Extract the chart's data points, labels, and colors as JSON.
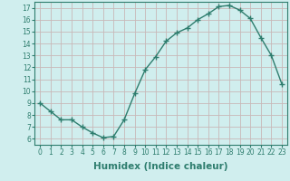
{
  "xlabel": "Humidex (Indice chaleur)",
  "ylabel": "",
  "x": [
    0,
    1,
    2,
    3,
    4,
    5,
    6,
    7,
    8,
    9,
    10,
    11,
    12,
    13,
    14,
    15,
    16,
    17,
    18,
    19,
    20,
    21,
    22,
    23
  ],
  "y": [
    9.0,
    8.3,
    7.6,
    7.6,
    7.0,
    6.5,
    6.1,
    6.2,
    7.6,
    9.8,
    11.8,
    12.9,
    14.2,
    14.9,
    15.3,
    16.0,
    16.5,
    17.1,
    17.2,
    16.8,
    16.1,
    14.5,
    13.0,
    10.6
  ],
  "line_color": "#2e7d6e",
  "marker": "+",
  "marker_size": 4,
  "bg_color": "#d0eeee",
  "grid_color": "#c8b8b8",
  "xlim": [
    -0.5,
    23.5
  ],
  "ylim": [
    5.5,
    17.5
  ],
  "yticks": [
    6,
    7,
    8,
    9,
    10,
    11,
    12,
    13,
    14,
    15,
    16,
    17
  ],
  "xticks": [
    0,
    1,
    2,
    3,
    4,
    5,
    6,
    7,
    8,
    9,
    10,
    11,
    12,
    13,
    14,
    15,
    16,
    17,
    18,
    19,
    20,
    21,
    22,
    23
  ],
  "tick_fontsize": 5.5,
  "label_fontsize": 7.5
}
